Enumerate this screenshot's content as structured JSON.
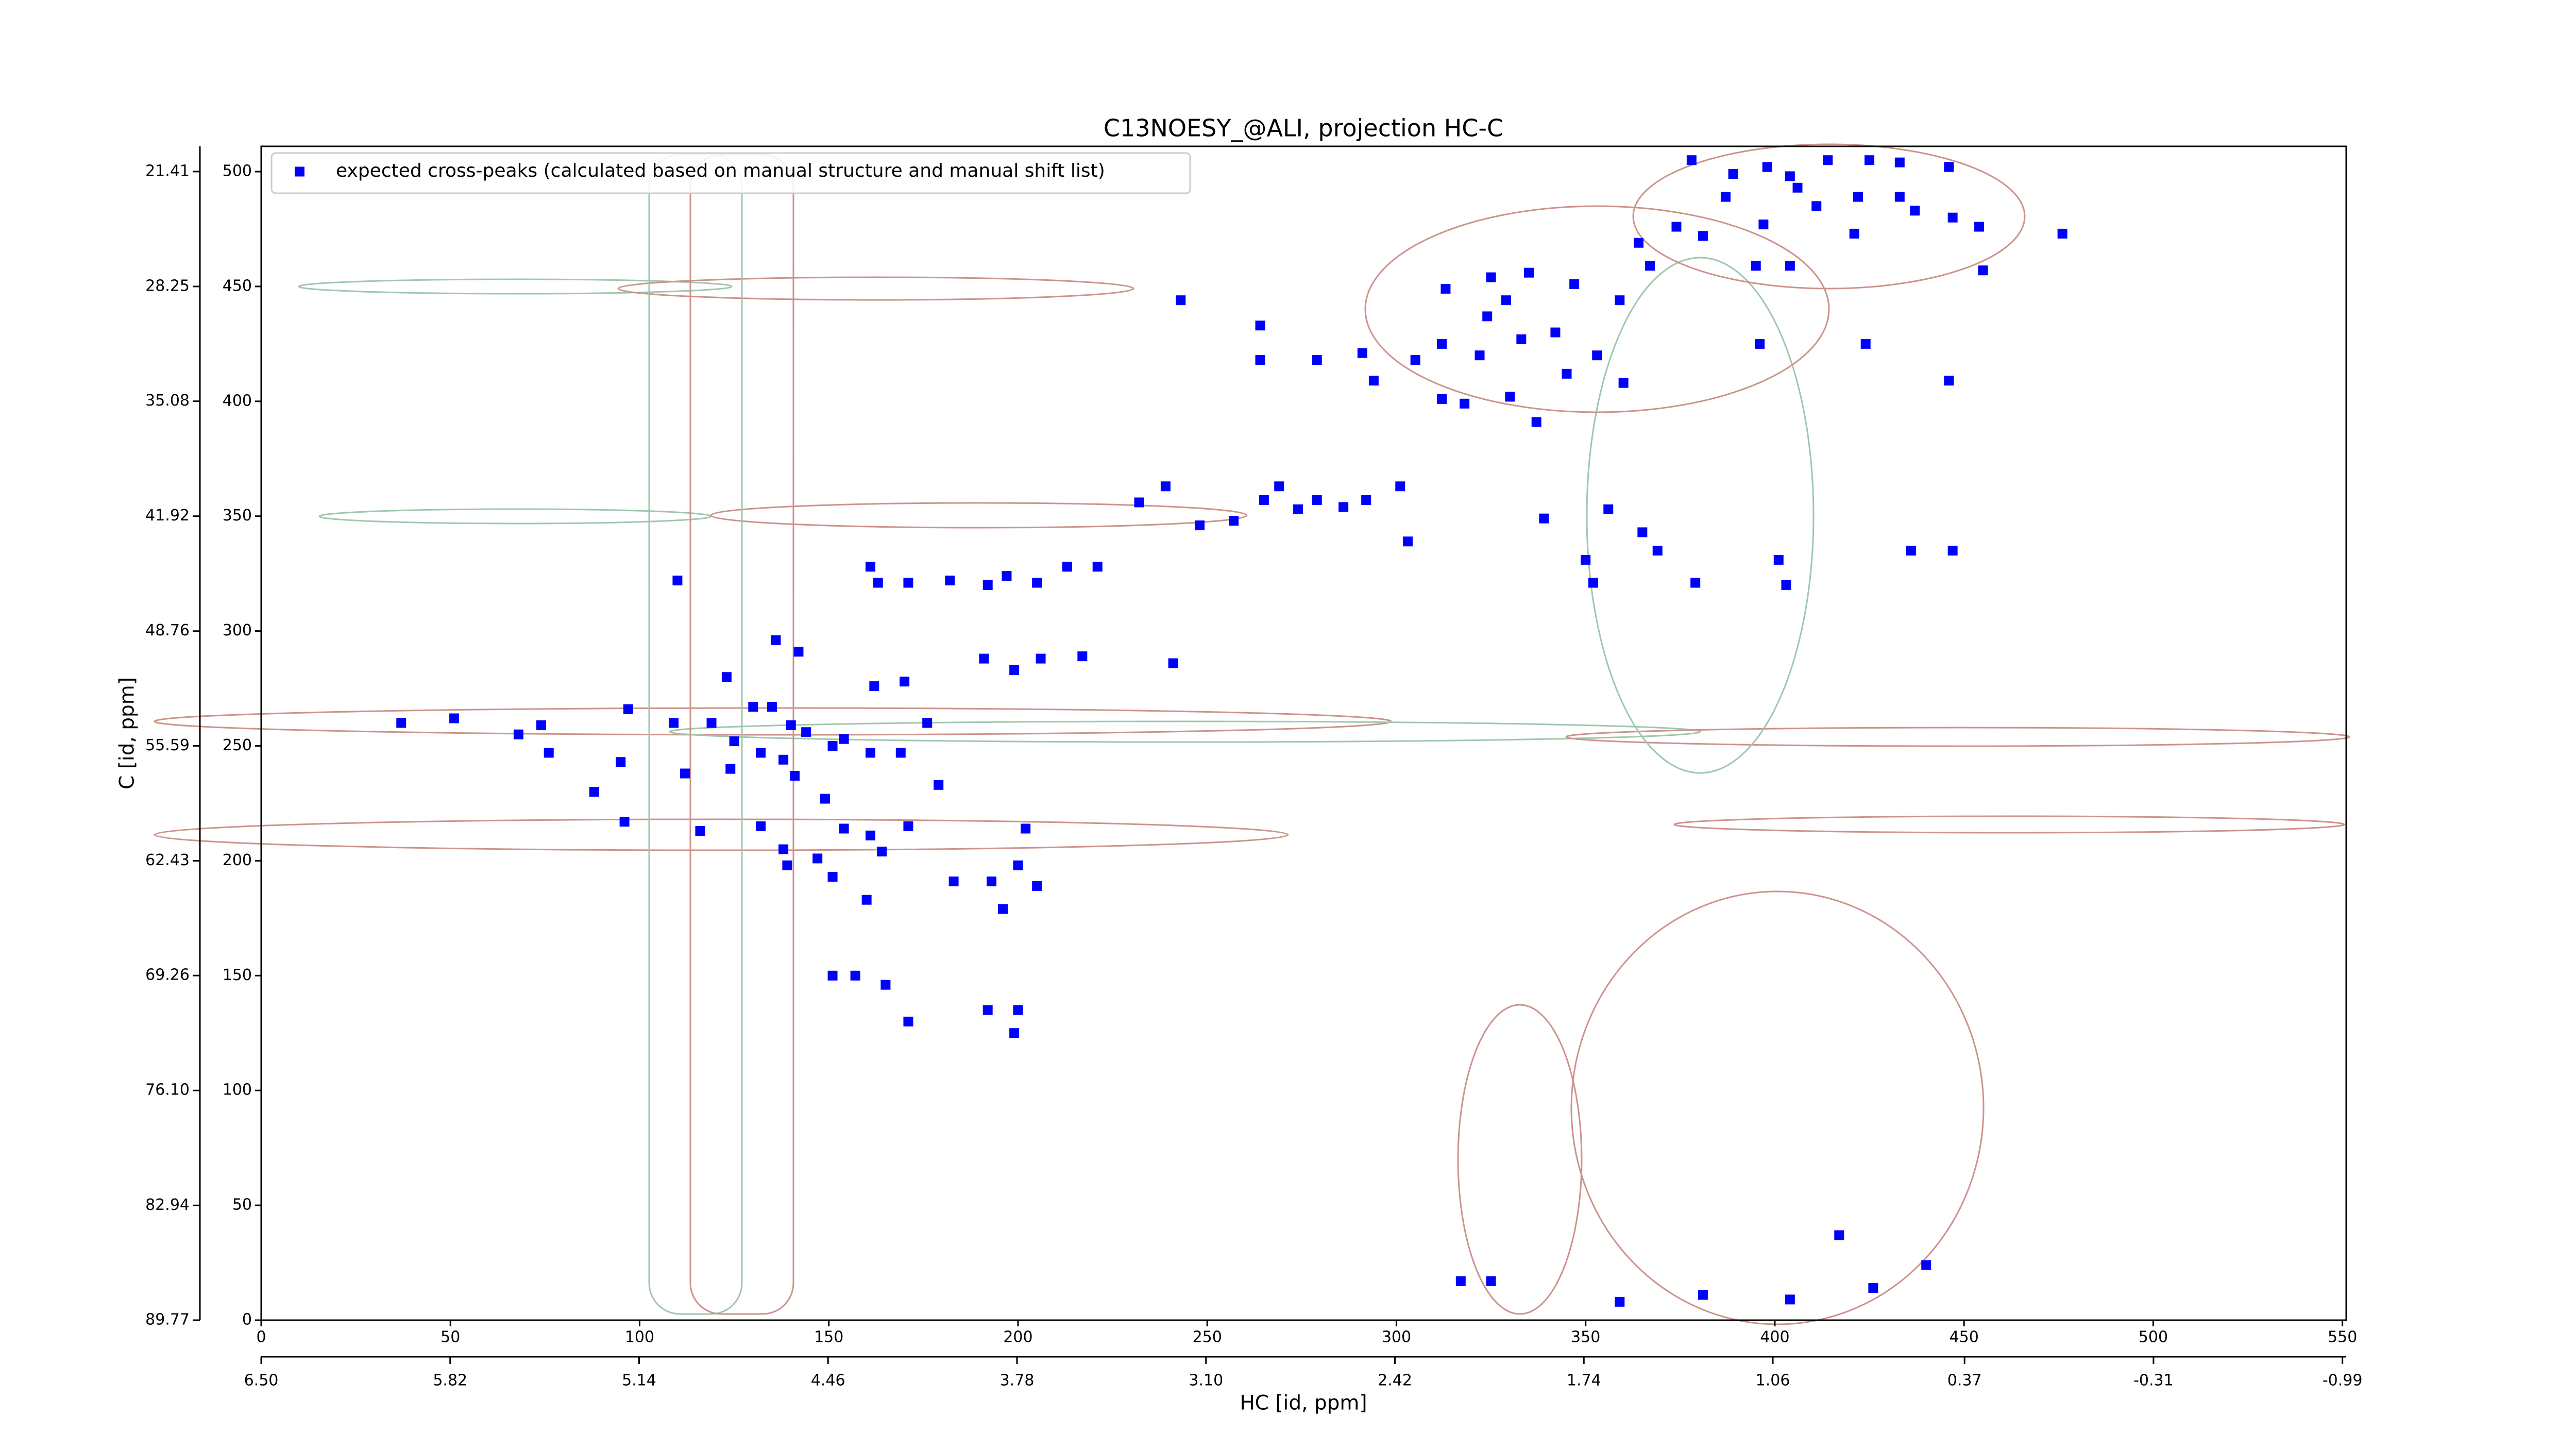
{
  "chart_data": {
    "type": "scatter",
    "title": "C13NOESY_@ALI, projection HC-C",
    "xlabel": "HC [id, ppm]",
    "ylabel": "C [id, ppm]",
    "legend": "upper left",
    "xlim": [
      0,
      551
    ],
    "ylim": [
      0,
      511
    ],
    "xticks": [
      0,
      50,
      100,
      150,
      200,
      250,
      300,
      350,
      400,
      450,
      500,
      550
    ],
    "yticks": [
      0,
      50,
      100,
      150,
      200,
      250,
      300,
      350,
      400,
      450,
      500
    ],
    "x2lim": [
      6.5,
      -1.0036
    ],
    "x2ticks": [
      {
        "value": 6.5,
        "label": "6.50"
      },
      5.82,
      5.14,
      4.46,
      3.78,
      {
        "value": 3.1,
        "label": "3.10"
      },
      2.42,
      1.74,
      1.06,
      0.37,
      -0.31,
      -0.99
    ],
    "y2lim": [
      89.77,
      19.91
    ],
    "y2ticks": [
      21.41,
      28.25,
      35.08,
      41.92,
      48.76,
      55.59,
      62.43,
      69.26,
      {
        "value": 76.1,
        "label": "76.10"
      },
      82.94,
      89.77
    ],
    "series": [
      {
        "name": "expected cross-peaks (calculated based on manual structure and manual shift list)",
        "color": "#0000ff",
        "x": [
          378,
          389,
          398,
          404,
          414,
          425,
          433,
          446,
          387,
          406,
          422,
          433,
          447,
          374,
          381,
          397,
          411,
          421,
          437,
          454,
          476,
          364,
          367,
          395,
          404,
          455,
          396,
          424,
          446,
          313,
          325,
          335,
          347,
          359,
          329,
          324,
          333,
          342,
          353,
          360,
          312,
          322,
          305,
          291,
          279,
          264,
          294,
          312,
          318,
          330,
          337,
          345,
          243,
          264,
          232,
          239,
          248,
          257,
          265,
          269,
          274,
          279,
          286,
          292,
          301,
          303,
          161,
          163,
          171,
          182,
          192,
          197,
          205,
          213,
          221,
          339,
          350,
          352,
          356,
          365,
          369,
          379,
          401,
          403,
          436,
          447,
          191,
          199,
          206,
          217,
          241,
          142,
          136,
          123,
          110,
          37,
          51,
          68,
          74,
          97,
          109,
          119,
          130,
          135,
          140,
          144,
          154,
          162,
          170,
          176,
          125,
          132,
          138,
          141,
          151,
          161,
          169,
          76,
          88,
          95,
          96,
          112,
          116,
          124,
          132,
          138,
          139,
          149,
          154,
          161,
          164,
          171,
          179,
          147,
          151,
          160,
          183,
          193,
          200,
          202,
          205,
          196,
          151,
          157,
          165,
          171,
          192,
          200,
          199,
          317,
          325,
          359,
          381,
          404,
          417,
          426,
          440
        ],
        "values": [
          505,
          499,
          502,
          498,
          505,
          505,
          504,
          502,
          489,
          493,
          489,
          489,
          480,
          476,
          472,
          477,
          485,
          473,
          483,
          476,
          473,
          469,
          459,
          459,
          459,
          457,
          425,
          425,
          409,
          449,
          454,
          456,
          451,
          444,
          444,
          437,
          427,
          430,
          420,
          408,
          425,
          420,
          418,
          421,
          418,
          418,
          409,
          401,
          399,
          402,
          391,
          412,
          444,
          433,
          356,
          363,
          346,
          348,
          357,
          363,
          353,
          357,
          354,
          357,
          363,
          339,
          328,
          321,
          321,
          322,
          320,
          324,
          321,
          328,
          328,
          349,
          331,
          321,
          353,
          343,
          335,
          321,
          331,
          320,
          335,
          335,
          288,
          283,
          288,
          289,
          286,
          291,
          296,
          280,
          322,
          260,
          262,
          255,
          259,
          266,
          260,
          260,
          267,
          267,
          259,
          256,
          253,
          276,
          278,
          260,
          252,
          247,
          244,
          237,
          250,
          247,
          247,
          247,
          230,
          243,
          217,
          238,
          213,
          240,
          215,
          205,
          198,
          227,
          214,
          211,
          204,
          215,
          233,
          201,
          193,
          183,
          191,
          191,
          198,
          214,
          189,
          179,
          150,
          150,
          146,
          130,
          135,
          135,
          125,
          17,
          17,
          8,
          11,
          9,
          37,
          14,
          24
        ]
      }
    ]
  }
}
